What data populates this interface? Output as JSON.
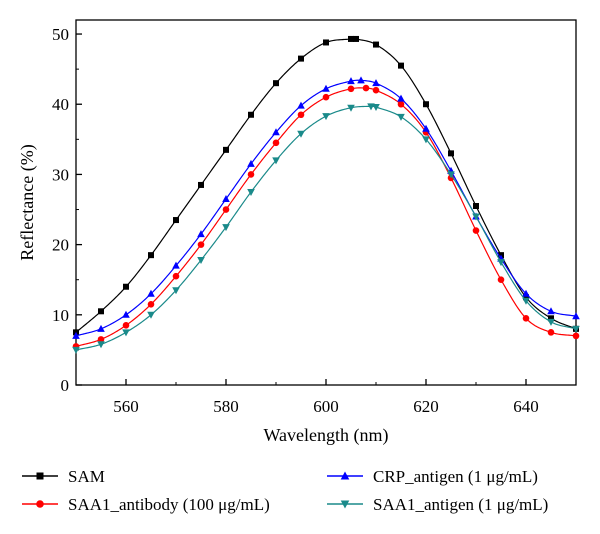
{
  "chart_data": {
    "type": "scatter",
    "xlabel": "Wavelength (nm)",
    "ylabel": "Reflectance (%)",
    "xlim": [
      550,
      650
    ],
    "ylim": [
      0,
      52
    ],
    "xticks": [
      560,
      580,
      600,
      620,
      640
    ],
    "yticks": [
      0,
      10,
      20,
      30,
      40,
      50
    ],
    "grid": false,
    "legend_placement": "bottom",
    "series": [
      {
        "name": "SAM",
        "color": "#000000",
        "marker": "square",
        "x": [
          550,
          555,
          560,
          565,
          570,
          575,
          580,
          585,
          590,
          595,
          600,
          605,
          606,
          610,
          615,
          620,
          625,
          630,
          635,
          640,
          645,
          650
        ],
        "y": [
          7.5,
          10.5,
          14.0,
          18.5,
          23.5,
          28.5,
          33.5,
          38.5,
          43.0,
          46.5,
          48.8,
          49.3,
          49.3,
          48.5,
          45.5,
          40.0,
          33.0,
          25.5,
          18.5,
          12.5,
          9.5,
          8.0
        ]
      },
      {
        "name": "SAA1_antibody (100 μg/mL)",
        "color": "#ff0000",
        "marker": "circle",
        "x": [
          550,
          555,
          560,
          565,
          570,
          575,
          580,
          585,
          590,
          595,
          600,
          605,
          608,
          610,
          615,
          620,
          625,
          630,
          635,
          640,
          645,
          650
        ],
        "y": [
          5.5,
          6.5,
          8.5,
          11.5,
          15.5,
          20.0,
          25.0,
          30.0,
          34.5,
          38.5,
          41.0,
          42.2,
          42.3,
          42.0,
          40.0,
          36.0,
          29.5,
          22.0,
          15.0,
          9.5,
          7.5,
          7.0
        ]
      },
      {
        "name": "CRP_antigen (1 μg/mL)",
        "color": "#0000ff",
        "marker": "triangle-up",
        "x": [
          550,
          555,
          560,
          565,
          570,
          575,
          580,
          585,
          590,
          595,
          600,
          605,
          607,
          610,
          615,
          620,
          625,
          630,
          635,
          640,
          645,
          650
        ],
        "y": [
          7.0,
          8.0,
          10.0,
          13.0,
          17.0,
          21.5,
          26.5,
          31.5,
          36.0,
          39.8,
          42.2,
          43.3,
          43.4,
          43.0,
          40.8,
          36.5,
          30.5,
          24.0,
          18.0,
          13.0,
          10.5,
          9.8
        ]
      },
      {
        "name": "SAA1_antigen (1 μg/mL)",
        "color": "#1a8a8a",
        "marker": "triangle-down",
        "x": [
          550,
          555,
          560,
          565,
          570,
          575,
          580,
          585,
          590,
          595,
          600,
          605,
          609,
          610,
          615,
          620,
          625,
          630,
          635,
          640,
          645,
          650
        ],
        "y": [
          5.0,
          5.8,
          7.5,
          10.0,
          13.5,
          17.8,
          22.5,
          27.5,
          32.0,
          35.8,
          38.3,
          39.5,
          39.7,
          39.6,
          38.2,
          35.0,
          30.0,
          24.0,
          17.5,
          12.0,
          9.0,
          8.0
        ]
      }
    ]
  }
}
